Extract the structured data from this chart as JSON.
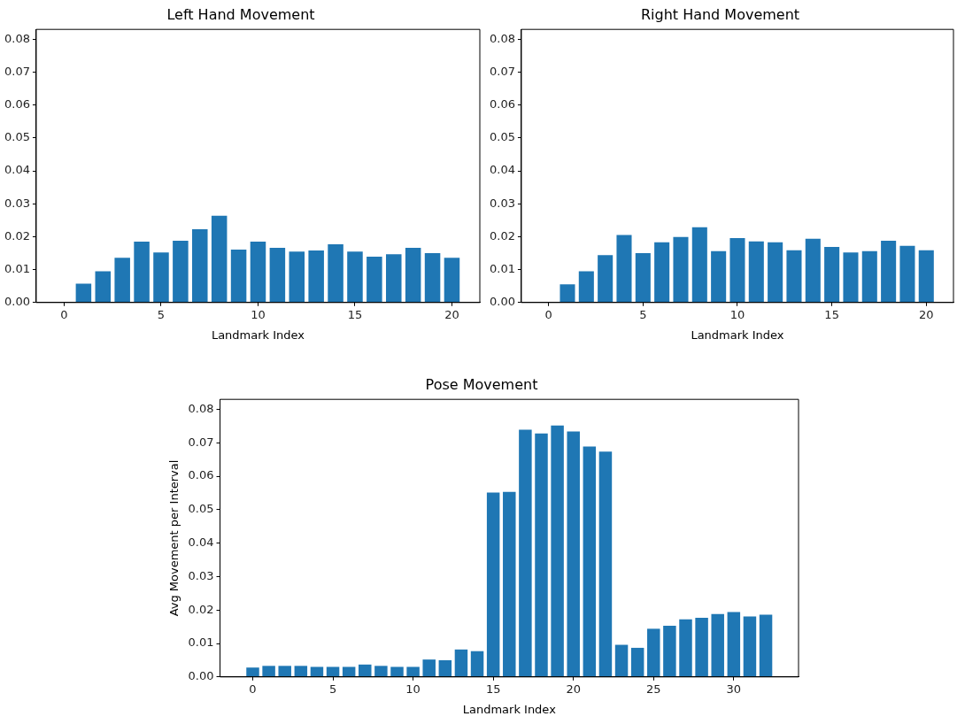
{
  "chart_data": [
    {
      "type": "bar",
      "title": "Left Hand Movement",
      "xlabel": "Landmark Index",
      "color": "#1f77b4",
      "grid": false,
      "x": [
        0,
        1,
        2,
        3,
        4,
        5,
        6,
        7,
        8,
        9,
        10,
        11,
        12,
        13,
        14,
        15,
        16,
        17,
        18,
        19,
        20
      ],
      "values": [
        0,
        0.0057,
        0.0095,
        0.0136,
        0.0185,
        0.0152,
        0.0188,
        0.0223,
        0.0264,
        0.0161,
        0.0185,
        0.0166,
        0.0155,
        0.0158,
        0.0177,
        0.0155,
        0.0139,
        0.0147,
        0.0166,
        0.015,
        0.0136
      ],
      "xlim": [
        -1.44,
        21.44
      ],
      "xticks": [
        0,
        5,
        10,
        15,
        20
      ],
      "ylim": [
        0,
        0.083
      ],
      "yticks": [
        {
          "value": 0,
          "label": "0.00"
        },
        {
          "value": 0.01,
          "label": "0.01"
        },
        {
          "value": 0.02,
          "label": "0.02"
        },
        {
          "value": 0.03,
          "label": "0.03"
        },
        {
          "value": 0.04,
          "label": "0.04"
        },
        {
          "value": 0.05,
          "label": "0.05"
        },
        {
          "value": 0.06,
          "label": "0.06"
        },
        {
          "value": 0.07,
          "label": "0.07"
        },
        {
          "value": 0.08,
          "label": "0.08"
        }
      ]
    },
    {
      "type": "bar",
      "title": "Right Hand Movement",
      "xlabel": "Landmark Index",
      "color": "#1f77b4",
      "grid": false,
      "x": [
        0,
        1,
        2,
        3,
        4,
        5,
        6,
        7,
        8,
        9,
        10,
        11,
        12,
        13,
        14,
        15,
        16,
        17,
        18,
        19,
        20
      ],
      "values": [
        0,
        0.0055,
        0.0095,
        0.0144,
        0.0205,
        0.015,
        0.0183,
        0.0199,
        0.0229,
        0.0156,
        0.0196,
        0.0186,
        0.0183,
        0.0159,
        0.0194,
        0.0169,
        0.0152,
        0.0156,
        0.0188,
        0.0172,
        0.0159
      ],
      "xlim": [
        -1.44,
        21.44
      ],
      "xticks": [
        0,
        5,
        10,
        15,
        20
      ],
      "ylim": [
        0,
        0.083
      ],
      "yticks": [
        {
          "value": 0,
          "label": "0.00"
        },
        {
          "value": 0.01,
          "label": "0.01"
        },
        {
          "value": 0.02,
          "label": "0.02"
        },
        {
          "value": 0.03,
          "label": "0.03"
        },
        {
          "value": 0.04,
          "label": "0.04"
        },
        {
          "value": 0.05,
          "label": "0.05"
        },
        {
          "value": 0.06,
          "label": "0.06"
        },
        {
          "value": 0.07,
          "label": "0.07"
        },
        {
          "value": 0.08,
          "label": "0.08"
        }
      ]
    },
    {
      "type": "bar",
      "title": "Pose Movement",
      "xlabel": "Landmark Index",
      "ylabel": "Avg Movement per Interval",
      "color": "#1f77b4",
      "grid": false,
      "x": [
        0,
        1,
        2,
        3,
        4,
        5,
        6,
        7,
        8,
        9,
        10,
        11,
        12,
        13,
        14,
        15,
        16,
        17,
        18,
        19,
        20,
        21,
        22,
        23,
        24,
        25,
        26,
        27,
        28,
        29,
        30,
        31,
        32
      ],
      "values": [
        0.0028,
        0.0033,
        0.0033,
        0.0033,
        0.003,
        0.003,
        0.003,
        0.0037,
        0.0033,
        0.003,
        0.003,
        0.0052,
        0.005,
        0.0082,
        0.0077,
        0.0551,
        0.0553,
        0.0739,
        0.0728,
        0.0752,
        0.0734,
        0.0689,
        0.0674,
        0.0096,
        0.0087,
        0.0144,
        0.0153,
        0.0172,
        0.0177,
        0.0188,
        0.0194,
        0.0181,
        0.0186
      ],
      "xlim": [
        -2.04,
        34.04
      ],
      "xticks": [
        0,
        5,
        10,
        15,
        20,
        25,
        30
      ],
      "ylim": [
        0,
        0.083
      ],
      "yticks": [
        {
          "value": 0,
          "label": "0.00"
        },
        {
          "value": 0.01,
          "label": "0.01"
        },
        {
          "value": 0.02,
          "label": "0.02"
        },
        {
          "value": 0.03,
          "label": "0.03"
        },
        {
          "value": 0.04,
          "label": "0.04"
        },
        {
          "value": 0.05,
          "label": "0.05"
        },
        {
          "value": 0.06,
          "label": "0.06"
        },
        {
          "value": 0.07,
          "label": "0.07"
        },
        {
          "value": 0.08,
          "label": "0.08"
        }
      ]
    }
  ]
}
